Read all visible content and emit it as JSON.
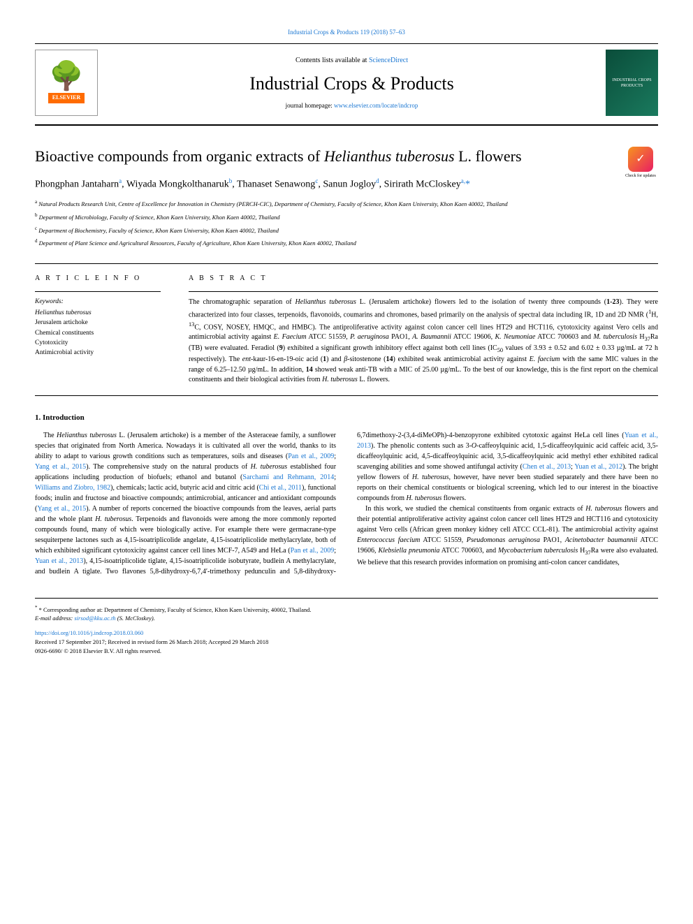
{
  "header": {
    "citation_link": "Industrial Crops & Products 119 (2018) 57–63",
    "contents_line_prefix": "Contents lists available at ",
    "contents_line_link": "ScienceDirect",
    "journal_name": "Industrial Crops & Products",
    "homepage_prefix": "journal homepage: ",
    "homepage_link": "www.elsevier.com/locate/indcrop",
    "elsevier_brand": "ELSEVIER",
    "cover_text": "INDUSTRIAL CROPS PRODUCTS",
    "check_updates": "Check for updates"
  },
  "article": {
    "title_pre": "Bioactive compounds from organic extracts of ",
    "title_italic": "Helianthus tuberosus",
    "title_post": " L. flowers",
    "authors_html": "Phongphan Jantaharn<sup>a</sup>, Wiyada Mongkolthanaruk<sup>b</sup>, Thanaset Senawong<sup>c</sup>, Sanun Jogloy<sup>d</sup>, Sirirath McCloskey<sup>a,</sup><span class='corr'>*</span>",
    "affiliations": [
      "a Natural Products Research Unit, Centre of Excellence for Innovation in Chemistry (PERCH-CIC), Department of Chemistry, Faculty of Science, Khon Kaen University, Khon Kaen 40002, Thailand",
      "b Department of Microbiology, Faculty of Science, Khon Kaen University, Khon Kaen 40002, Thailand",
      "c Department of Biochemistry, Faculty of Science, Khon Kaen University, Khon Kaen 40002, Thailand",
      "d Department of Plant Science and Agricultural Resources, Faculty of Agriculture, Khon Kaen University, Khon Kaen 40002, Thailand"
    ]
  },
  "info": {
    "heading": "A R T I C L E  I N F O",
    "keywords_label": "Keywords:",
    "keywords": [
      "Helianthus tuberosus",
      "Jerusalem artichoke",
      "Chemical constituents",
      "Cytotoxicity",
      "Antimicrobial activity"
    ]
  },
  "abstract": {
    "heading": "A B S T R A C T",
    "text": "The chromatographic separation of <span class='italic'>Helianthus tuberosus</span> L. (Jerusalem artichoke) flowers led to the isolation of twenty three compounds (<span class='bold'>1-23</span>). They were characterized into four classes, terpenoids, flavonoids, coumarins and chromones, based primarily on the analysis of spectral data including IR, 1D and 2D NMR (<sup>1</sup>H, <sup>13</sup>C, COSY, NOSEY, HMQC, and HMBC). The antiproliferative activity against colon cancer cell lines HT29 and HCT116, cytotoxicity against Vero cells and antimicrobial activity against <span class='italic'>E. Faecium</span> ATCC 51559, <span class='italic'>P. aeruginosa</span> PAO1, <span class='italic'>A. Baumannii</span> ATCC 19606, <span class='italic'>K. Neumoniae</span> ATCC 700603 and <span class='italic'>M. tuberculosis</span> H<sub>37</sub>Ra (TB) were evaluated. Feradiol (<span class='bold'>9</span>) exhibited a significant growth inhibitory effect against both cell lines (IC<sub>50</sub> values of 3.93 ± 0.52 and 6.02 ± 0.33 µg/mL at 72 h respectively). The <span class='italic'>ent</span>-kaur-16-en-19-oic acid (<span class='bold'>1</span>) and <span class='italic'>β</span>-sitostenone (<span class='bold'>14</span>) exhibited weak antimicrobial activity against <span class='italic'>E. faecium</span> with the same MIC values in the range of 6.25–12.50 µg/mL. In addition, <span class='bold'>14</span> showed weak anti-TB with a MIC of 25.00 µg/mL. To the best of our knowledge, this is the first report on the chemical constituents and their biological activities from <span class='italic'>H. tuberosus</span> L. flowers."
  },
  "body": {
    "section_number": "1.",
    "section_title": "Introduction",
    "para1": "The <span class='italic'>Helianthus tuberosus</span> L. (Jerusalem artichoke) is a member of the Asteraceae family, a sunflower species that originated from North America. Nowadays it is cultivated all over the world, thanks to its ability to adapt to various growth conditions such as temperatures, soils and diseases (<span class='ref'>Pan et al., 2009</span>; <span class='ref'>Yang et al., 2015</span>). The comprehensive study on the natural products of <span class='italic'>H. tuberosus</span> established four applications including production of biofuels; ethanol and butanol (<span class='ref'>Sarchami and Rehmann, 2014</span>; <span class='ref'>Williams and Ziobro, 1982</span>), chemicals; lactic acid, butyric acid and citric acid (<span class='ref'>Chi et al., 2011</span>), functional foods; inulin and fructose and bioactive compounds; antimicrobial, anticancer and antioxidant compounds (<span class='ref'>Yang et al., 2015</span>). A number of reports concerned the bioactive compounds from the leaves, aerial parts and the whole plant <span class='italic'>H. tuberosus</span>. Terpenoids and flavonoids were among the more commonly reported compounds found, many of which were biologically active. For example there were germacrane-type sesquiterpene lactones such as 4,15-isoatriplicolide angelate, 4,15-isoatriplicolide methylacrylate, both of which exhibited significant cytotoxicity against cancer cell lines MCF-7, A549 and HeLa (<span class='ref'>Pan et al., 2009</span>; <span class='ref'>Yuan et al., 2013</span>), 4,15-isoatriplicolide tiglate, 4,15-isoatriplicolide isobutyrate, budlein A methylacrylate, and budlein A tiglate. Two flavones 5,8-dihydroxy-6,7,4′-trimethoxy pedunculin and 5,8-dihydroxy-6,7dimethoxy-2-(3,4-diMeOPh)-4-benzopyrone exhibited cytotoxic against HeLa cell lines (<span class='ref'>Yuan et al., 2013</span>). The phenolic contents such as 3-<span class='italic'>O</span>-caffeoylquinic acid, 1,5-dicaffeoylquinic acid caffeic acid, 3,5-dicaffeoylquinic acid, 4,5-dicaffeoylquinic acid, 3,5-dicaffeoylquinic acid methyl ether exhibited radical scavenging abilities and some showed antifungal activity (<span class='ref'>Chen et al., 2013</span>; <span class='ref'>Yuan et al., 2012</span>). The bright yellow flowers of <span class='italic'>H. tuberosus</span>, however, have never been studied separately and there have been no reports on their chemical constituents or biological screening, which led to our interest in the bioactive compounds from <span class='italic'>H. tuberosus</span> flowers.",
    "para2": "In this work, we studied the chemical constituents from organic extracts of <span class='italic'>H. tuberosus</span> flowers and their potential antiproliferative activity against colon cancer cell lines HT29 and HCT116 and cytotoxicity against Vero cells (African green monkey kidney cell ATCC CCL-81). The antimicrobial activity against <span class='italic'>Enterococcus faecium</span> ATCC 51559, <span class='italic'>Pseudomonas aeruginosa</span> PAO1, <span class='italic'>Acinetobacter baumannii</span> ATCC 19606, <span class='italic'>Klebsiella pneumonia</span> ATCC 700603, and <span class='italic'>Mycobacterium tuberculosis</span> H<sub>37</sub>Ra were also evaluated. We believe that this research provides information on promising anti-colon cancer candidates,"
  },
  "footer": {
    "corr_note": "* Corresponding author at: Department of Chemistry, Faculty of Science, Khon Kaen University, 40002, Thailand.",
    "email_label": "E-mail address: ",
    "email": "sirsod@kku.ac.th",
    "email_name": " (S. McCloskey).",
    "doi": "https://doi.org/10.1016/j.indcrop.2018.03.060",
    "received": "Received 17 September 2017; Received in revised form 26 March 2018; Accepted 29 March 2018",
    "copyright": "0926-6690/ © 2018 Elsevier B.V. All rights reserved."
  }
}
